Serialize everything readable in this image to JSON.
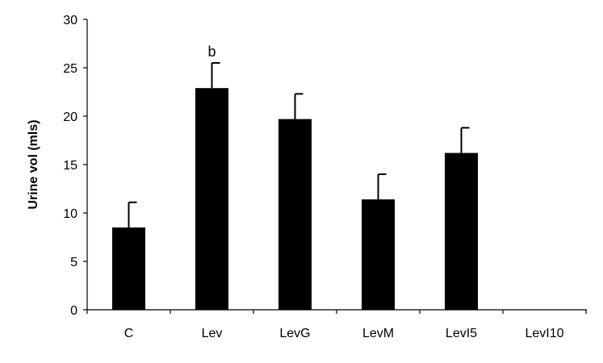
{
  "chart_data": {
    "type": "bar",
    "title": "",
    "xlabel": "",
    "ylabel": "Urine vol (mls)",
    "ylim": [
      0,
      30
    ],
    "yticks": [
      0,
      5,
      10,
      15,
      20,
      25,
      30
    ],
    "categories": [
      "C",
      "Lev",
      "LevG",
      "LevM",
      "LevI5",
      "LevI10"
    ],
    "values": [
      8.5,
      22.9,
      19.7,
      11.4,
      16.2,
      0
    ],
    "errors": [
      2.6,
      2.6,
      2.6,
      2.6,
      2.6,
      0
    ],
    "annotations": [
      "",
      "b",
      "",
      "",
      "",
      ""
    ],
    "bar_color": "#000000",
    "grid": false,
    "legend": "none"
  }
}
